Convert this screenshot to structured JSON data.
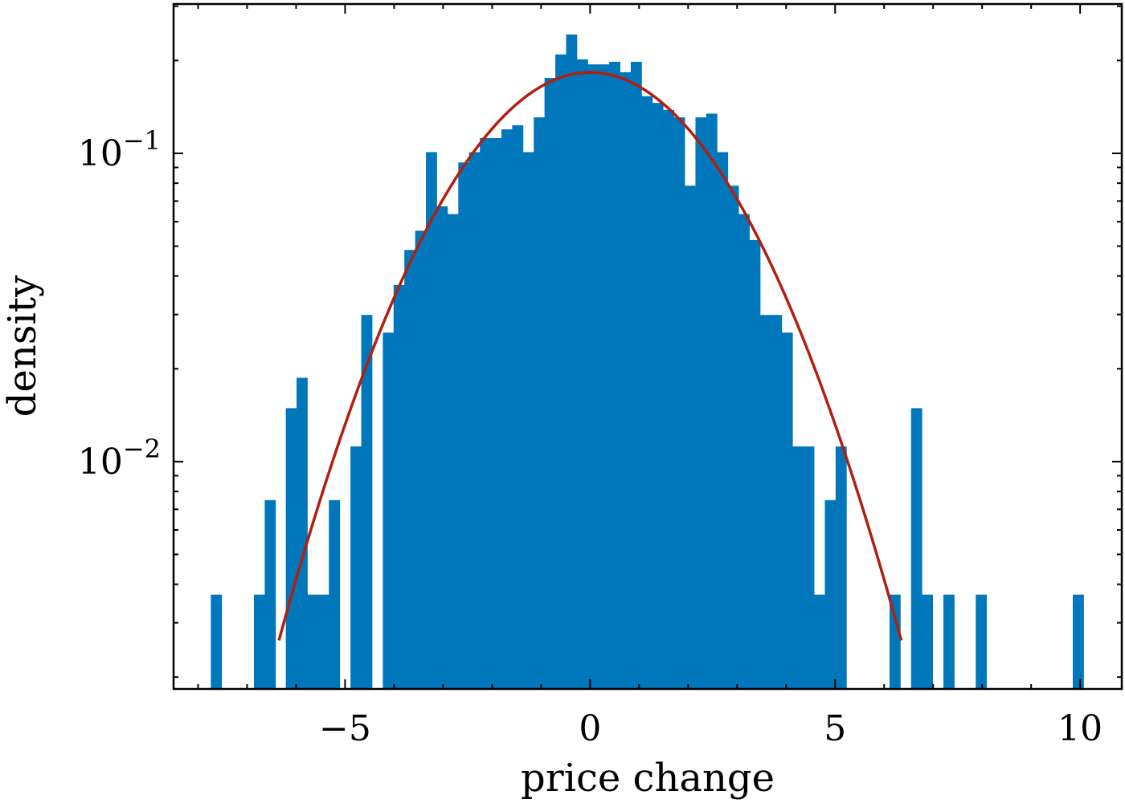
{
  "chart_data": {
    "type": "bar",
    "xlabel": "price change",
    "ylabel": "density",
    "yscale": "log",
    "xlim": [
      -8.5,
      10.85
    ],
    "ylim": [
      0.00183,
      0.305
    ],
    "x_ticks": [
      {
        "value": -5,
        "label": "−5"
      },
      {
        "value": 0,
        "label": "0"
      },
      {
        "value": 5,
        "label": "5"
      },
      {
        "value": 10,
        "label": "10"
      }
    ],
    "y_ticks": [
      {
        "value": 0.1,
        "base": "10",
        "exp": "−1"
      },
      {
        "value": 0.01,
        "base": "10",
        "exp": "−2"
      }
    ],
    "bin_width": 0.22,
    "series": [
      {
        "type": "histogram",
        "color": "#0077bb",
        "bins": [
          {
            "x": -7.63,
            "y": 0.0037
          },
          {
            "x": -6.75,
            "y": 0.0037
          },
          {
            "x": -6.53,
            "y": 0.0075
          },
          {
            "x": -6.1,
            "y": 0.0149
          },
          {
            "x": -5.88,
            "y": 0.0187
          },
          {
            "x": -5.66,
            "y": 0.0037
          },
          {
            "x": -5.44,
            "y": 0.0037
          },
          {
            "x": -5.22,
            "y": 0.0075
          },
          {
            "x": -4.78,
            "y": 0.0112
          },
          {
            "x": -4.56,
            "y": 0.0299
          },
          {
            "x": -4.12,
            "y": 0.0262
          },
          {
            "x": -3.9,
            "y": 0.0374
          },
          {
            "x": -3.68,
            "y": 0.0486
          },
          {
            "x": -3.46,
            "y": 0.0561
          },
          {
            "x": -3.24,
            "y": 0.1009
          },
          {
            "x": -3.02,
            "y": 0.0673
          },
          {
            "x": -2.8,
            "y": 0.0635
          },
          {
            "x": -2.58,
            "y": 0.0934
          },
          {
            "x": -2.36,
            "y": 0.1009
          },
          {
            "x": -2.14,
            "y": 0.1121
          },
          {
            "x": -1.92,
            "y": 0.1121
          },
          {
            "x": -1.7,
            "y": 0.1196
          },
          {
            "x": -1.48,
            "y": 0.1233
          },
          {
            "x": -1.26,
            "y": 0.1009
          },
          {
            "x": -1.04,
            "y": 0.1308
          },
          {
            "x": -0.82,
            "y": 0.1756
          },
          {
            "x": -0.6,
            "y": 0.2093
          },
          {
            "x": -0.38,
            "y": 0.2429
          },
          {
            "x": -0.16,
            "y": 0.2018
          },
          {
            "x": 0.06,
            "y": 0.1943
          },
          {
            "x": 0.28,
            "y": 0.1943
          },
          {
            "x": 0.5,
            "y": 0.1981
          },
          {
            "x": 0.72,
            "y": 0.1832
          },
          {
            "x": 0.94,
            "y": 0.1981
          },
          {
            "x": 1.16,
            "y": 0.1532
          },
          {
            "x": 1.38,
            "y": 0.1457
          },
          {
            "x": 1.6,
            "y": 0.1383
          },
          {
            "x": 1.82,
            "y": 0.1308
          },
          {
            "x": 2.04,
            "y": 0.0785
          },
          {
            "x": 2.26,
            "y": 0.1308
          },
          {
            "x": 2.48,
            "y": 0.1345
          },
          {
            "x": 2.7,
            "y": 0.1009
          },
          {
            "x": 2.92,
            "y": 0.0785
          },
          {
            "x": 3.14,
            "y": 0.0635
          },
          {
            "x": 3.36,
            "y": 0.0523
          },
          {
            "x": 3.58,
            "y": 0.0299
          },
          {
            "x": 3.8,
            "y": 0.0299
          },
          {
            "x": 4.02,
            "y": 0.0262
          },
          {
            "x": 4.24,
            "y": 0.0112
          },
          {
            "x": 4.46,
            "y": 0.0112
          },
          {
            "x": 4.68,
            "y": 0.0037
          },
          {
            "x": 4.9,
            "y": 0.0075
          },
          {
            "x": 5.12,
            "y": 0.0112
          },
          {
            "x": 6.22,
            "y": 0.0037
          },
          {
            "x": 6.66,
            "y": 0.0149
          },
          {
            "x": 6.88,
            "y": 0.0037
          },
          {
            "x": 7.32,
            "y": 0.0037
          },
          {
            "x": 7.98,
            "y": 0.0037
          },
          {
            "x": 9.96,
            "y": 0.0037
          }
        ]
      },
      {
        "type": "line",
        "color": "#b02010",
        "mu": 0,
        "sigma": 2.18,
        "x_range": [
          -6.35,
          6.35
        ]
      }
    ]
  }
}
